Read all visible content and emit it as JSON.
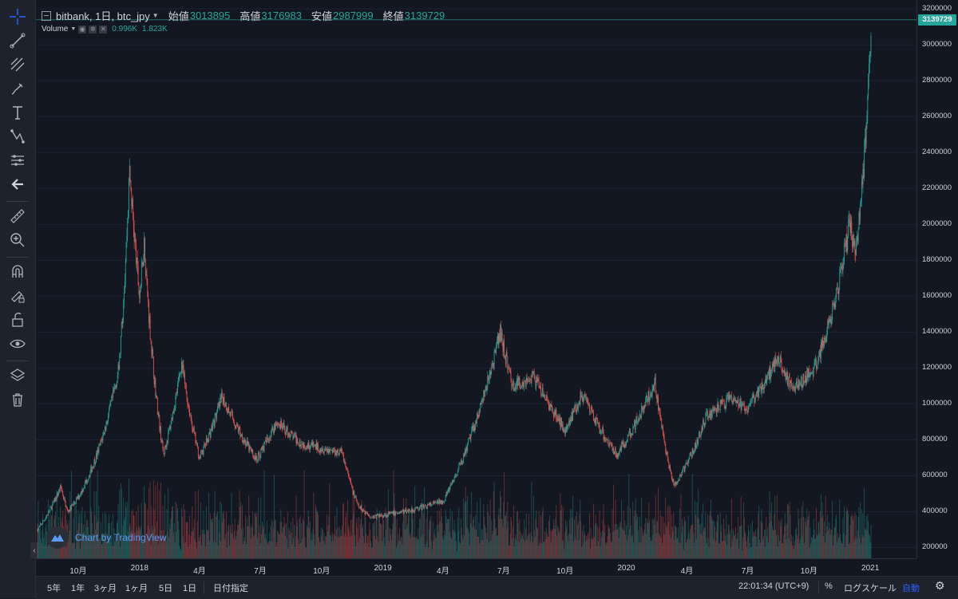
{
  "legend": {
    "collapse_icon": "minus-square-icon",
    "symbol": "bitbank, 1日, btc_jpy",
    "open_label": "始値",
    "open_value": "3013895",
    "high_label": "高値",
    "high_value": "3176983",
    "low_label": "安値",
    "low_value": "2987999",
    "close_label": "終値",
    "close_value": "3139729"
  },
  "volume_legend": {
    "label": "Volume",
    "value1": "0.996K",
    "value2": "1.823K"
  },
  "watermark": {
    "text": "Chart by TradingView"
  },
  "last_price_badge": "3139729",
  "colors": {
    "background": "#131722",
    "up": "#26a69a",
    "down": "#ef5350",
    "grid": "#1e222d",
    "accent": "#2962ff"
  },
  "toolbar": {
    "tools": [
      "crosshair-icon",
      "trend-line-icon",
      "fib-icon",
      "brush-icon",
      "text-icon",
      "pattern-icon",
      "prediction-icon",
      "back-arrow-icon",
      "ruler-icon",
      "zoom-in-icon",
      "magnet-icon",
      "lock-drawing-icon",
      "unlock-icon",
      "eye-icon",
      "layers-icon",
      "trash-icon"
    ]
  },
  "bottom_bar": {
    "ranges": [
      "5年",
      "1年",
      "3ヶ月",
      "1ヶ月",
      "5日",
      "1日"
    ],
    "goto_date": "日付指定",
    "clock": "22:01:34 (UTC+9)",
    "percent": "%",
    "log_scale": "ログスケール",
    "auto": "自動",
    "settings_icon": "gear-icon"
  },
  "chart_data": {
    "type": "candlestick",
    "symbol": "btc_jpy",
    "exchange": "bitbank",
    "interval": "1日",
    "price_axis": {
      "ticks": [
        3200000,
        3000000,
        2800000,
        2600000,
        2400000,
        2200000,
        2000000,
        1800000,
        1600000,
        1400000,
        1200000,
        1000000,
        800000,
        600000,
        400000,
        200000
      ],
      "range": [
        140000,
        3250000
      ]
    },
    "time_axis": {
      "ticks": [
        "10月",
        "2018",
        "4月",
        "7月",
        "10月",
        "2019",
        "4月",
        "7月",
        "10月",
        "2020",
        "4月",
        "7月",
        "10月",
        "2021"
      ]
    },
    "key_points": [
      {
        "date": "2017-08-01",
        "close": 300000
      },
      {
        "date": "2017-09-05",
        "close": 540000
      },
      {
        "date": "2017-09-15",
        "close": 400000
      },
      {
        "date": "2017-10-01",
        "close": 480000
      },
      {
        "date": "2017-11-01",
        "close": 750000
      },
      {
        "date": "2017-12-01",
        "close": 1200000
      },
      {
        "date": "2017-12-17",
        "close": 2300000
      },
      {
        "date": "2018-01-01",
        "close": 1600000
      },
      {
        "date": "2018-01-08",
        "close": 1900000
      },
      {
        "date": "2018-02-06",
        "close": 720000
      },
      {
        "date": "2018-03-05",
        "close": 1230000
      },
      {
        "date": "2018-04-01",
        "close": 700000
      },
      {
        "date": "2018-05-05",
        "close": 1040000
      },
      {
        "date": "2018-06-25",
        "close": 690000
      },
      {
        "date": "2018-07-25",
        "close": 900000
      },
      {
        "date": "2018-09-01",
        "close": 780000
      },
      {
        "date": "2018-11-01",
        "close": 730000
      },
      {
        "date": "2018-11-25",
        "close": 430000
      },
      {
        "date": "2018-12-15",
        "close": 370000
      },
      {
        "date": "2019-02-15",
        "close": 410000
      },
      {
        "date": "2019-04-01",
        "close": 460000
      },
      {
        "date": "2019-05-15",
        "close": 850000
      },
      {
        "date": "2019-06-26",
        "close": 1400000
      },
      {
        "date": "2019-07-15",
        "close": 1100000
      },
      {
        "date": "2019-08-15",
        "close": 1150000
      },
      {
        "date": "2019-10-01",
        "close": 860000
      },
      {
        "date": "2019-10-26",
        "close": 1050000
      },
      {
        "date": "2019-12-18",
        "close": 720000
      },
      {
        "date": "2020-02-13",
        "close": 1120000
      },
      {
        "date": "2020-03-13",
        "close": 540000
      },
      {
        "date": "2020-04-30",
        "close": 930000
      },
      {
        "date": "2020-06-01",
        "close": 1020000
      },
      {
        "date": "2020-07-01",
        "close": 980000
      },
      {
        "date": "2020-08-17",
        "close": 1270000
      },
      {
        "date": "2020-09-05",
        "close": 1080000
      },
      {
        "date": "2020-10-10",
        "close": 1200000
      },
      {
        "date": "2020-11-10",
        "close": 1600000
      },
      {
        "date": "2020-12-01",
        "close": 2000000
      },
      {
        "date": "2020-12-11",
        "close": 1850000
      },
      {
        "date": "2020-12-25",
        "close": 2500000
      },
      {
        "date": "2021-01-02",
        "close": 3139729
      }
    ],
    "volume": {
      "scale_note": "",
      "peak_periods": [
        "2017-12",
        "2018-11",
        "2019-06",
        "2020-03",
        "2020-12"
      ]
    }
  }
}
